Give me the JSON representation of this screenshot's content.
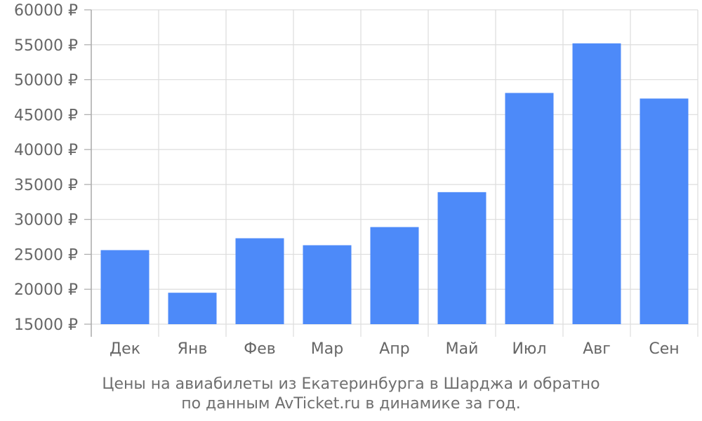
{
  "chart_data": {
    "type": "bar",
    "title": "",
    "xlabel": "",
    "ylabel": "",
    "categories": [
      "Дек",
      "Янв",
      "Фев",
      "Мар",
      "Апр",
      "Май",
      "Июл",
      "Авг",
      "Сен"
    ],
    "values": [
      25600,
      19500,
      27300,
      26300,
      28900,
      33900,
      48100,
      55200,
      47300
    ],
    "ylim": [
      15000,
      60000
    ],
    "yticks": [
      15000,
      20000,
      25000,
      30000,
      35000,
      40000,
      45000,
      50000,
      55000,
      60000
    ],
    "ytick_labels": [
      "15000 ₽",
      "20000 ₽",
      "25000 ₽",
      "30000 ₽",
      "35000 ₽",
      "40000 ₽",
      "45000 ₽",
      "50000 ₽",
      "55000 ₽",
      "60000 ₽"
    ],
    "grid": true,
    "bar_color": "#4d8af9",
    "grid_color": "#dddddd",
    "axis_color": "#aaaaaa",
    "tick_label_color": "#666666"
  },
  "caption": {
    "line1": "Цены на авиабилеты из Екатеринбурга в Шарджа и обратно",
    "line2": "по данным AvTicket.ru в динамике за год."
  }
}
